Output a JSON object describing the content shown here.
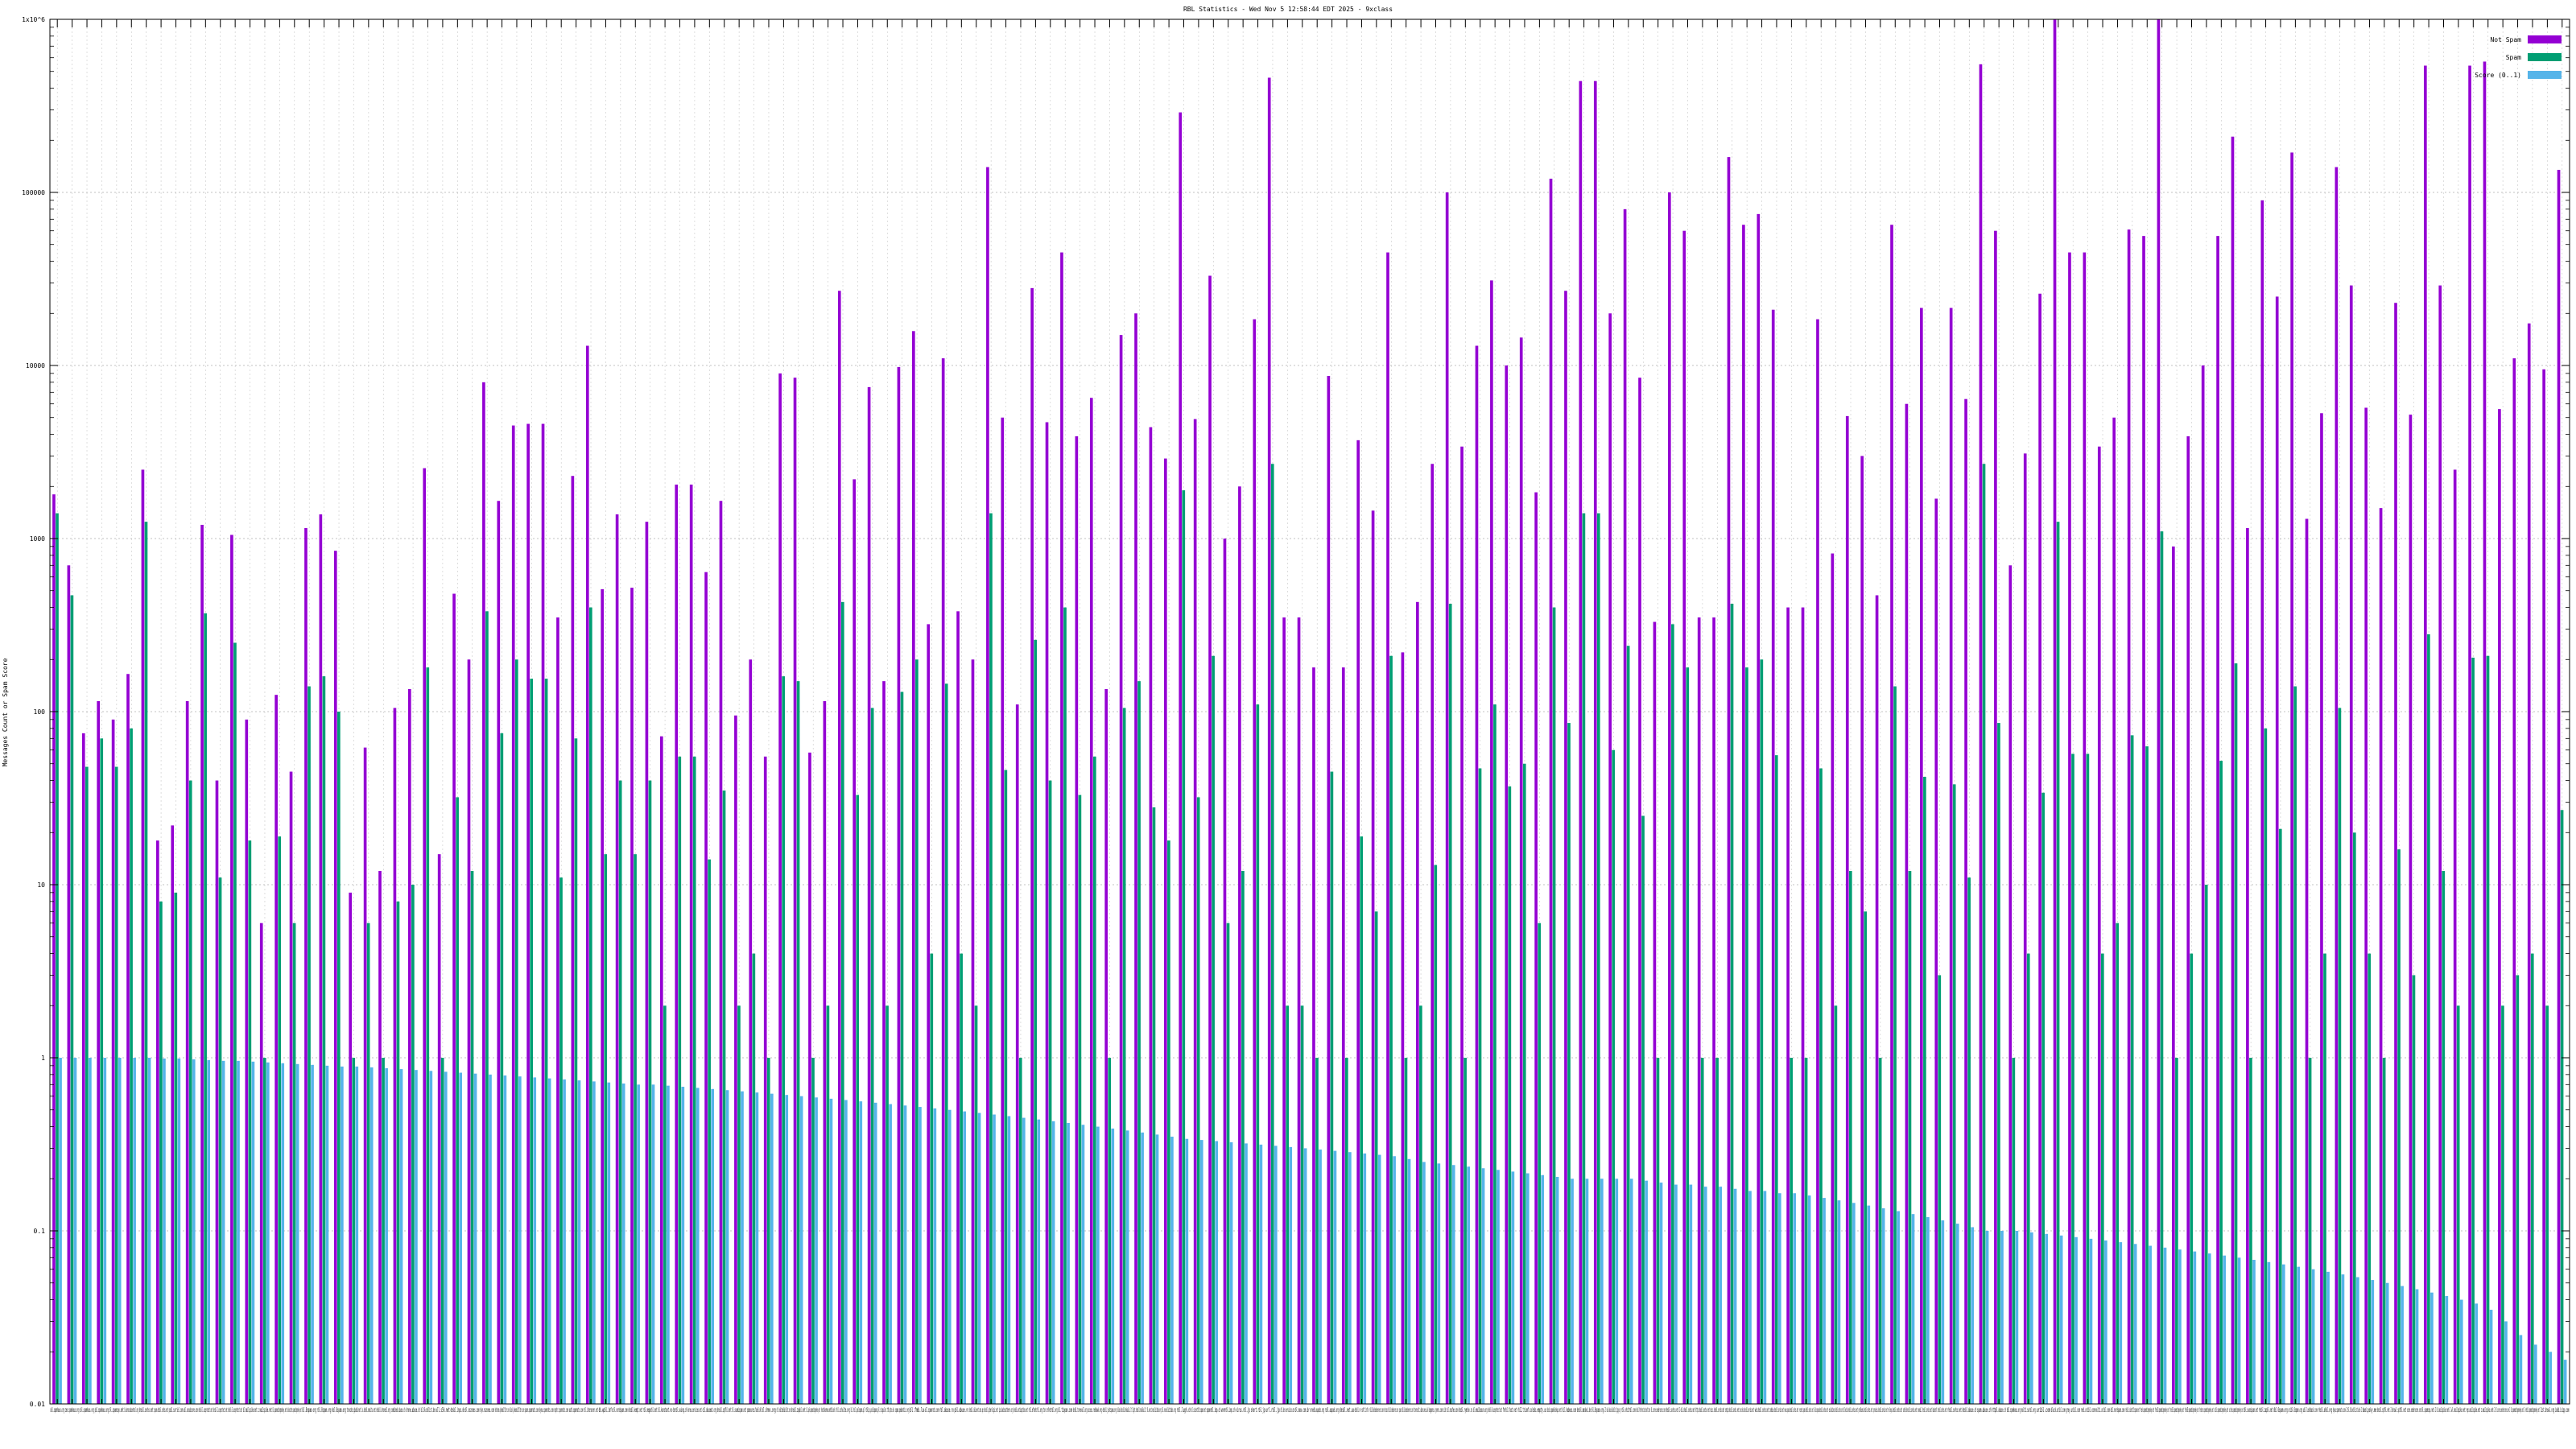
{
  "chart_data": {
    "type": "bar",
    "title": "RBL Statistics - Wed Nov 5 12:58:44 EDT 2025 - 9xclass",
    "xlabel": "",
    "ylabel": "Messages Count or Spam Score",
    "y_scale": "log",
    "ylim": [
      0.01,
      1000000.0
    ],
    "grid": true,
    "legend_position": "top-right",
    "y_tick_labels": [
      {
        "value": 0.01,
        "label": "0.01"
      },
      {
        "value": 0.1,
        "label": "0.1"
      },
      {
        "value": 1,
        "label": "1"
      },
      {
        "value": 10,
        "label": "10"
      },
      {
        "value": 100,
        "label": "100"
      },
      {
        "value": 1000,
        "label": "1000"
      },
      {
        "value": 10000,
        "label": "10000"
      },
      {
        "value": 100000,
        "label": "100000"
      },
      {
        "value": 1000000,
        "label": "1x10^6"
      }
    ],
    "categories": [
      "xbl.spamhaus.org",
      "zen.spamhaus.org",
      "sbl.spamhaus.org",
      "pbl.spamhaus.org",
      "bl.spamcop.net",
      "b.barracudacentral.org",
      "dnsbl.sorbs.net",
      "spam.dnsbl.sorbs.net",
      "psbl.surriel.com",
      "ubl.unsubscore.com",
      "dnsbl-1.uceprotect.net",
      "dnsbl-2.uceprotect.net",
      "dnsbl-3.uceprotect.net",
      "bl.mailspike.net",
      "z.mailspike.net",
      "bl.spameatingmonkey.net",
      "backscatter.spameatingmonkey.net",
      "bl.0spam.org",
      "rbl.0spam.org",
      "nbl.0spam.org",
      "truncate.gbudb.net",
      "ix.dnsbl.manitu.net",
      "dnsbl.dronebl.org",
      "combined.abuse.ch",
      "drone.abuse.ch",
      "bl.blocklist.de",
      "all.s5h.net",
      "dnsbl.inps.de",
      "bl.nszones.com",
      "dyn.nszones.com",
      "hostkarma.junkemailfilter.com",
      "black.junkemailfilter.com",
      "spam.spamrats.com",
      "dyna.spamrats.com",
      "noptr.spamrats.com",
      "auth.spamrats.com",
      "rbl.interserver.net",
      "db.wpbl.info",
      "bl.nordspam.com",
      "dnsbl.kempt.net",
      "rbl.megarbl.net",
      "bl.konstant.no",
      "dnsrbl.swinog.ch",
      "korea.services.net",
      "cbl.abuseat.org",
      "dnsbl.spfbl.net",
      "bl.suomispam.net",
      "spamsources.fabel.dk",
      "bl.drmx.org",
      "rbl.realtimeblacklist.com",
      "dnsbl.zapbl.net",
      "bl.ipv6.spameatingmonkey.net",
      "hostkarma.netblock",
      "rbl.schulte.org",
      "bl.rbl.polspam.pl",
      "rblip.polspam.pl",
      "singular.ttk.pte.hu",
      "spam.pedantic.org",
      "bl.fmb.la",
      "all.spamrats.com",
      "rbl.abuse.ro",
      "pbl.abuse.ro",
      "dnsbl.calivent.com.pe",
      "dnsbl.cyberlogic.net",
      "ips.backscatterer.org",
      "dnsbl.anticaptcha.net",
      "rbl.efnetrbl.org",
      "tor.efnetrbl.org",
      "bl.tiopan.com",
      "dnsbl.tornevall.org",
      "access.redhawk.org",
      "dnsbl.justspam.org",
      "black.dnsbl.brukalai.lt",
      "light.dnsbl.brukalai.lt",
      "bl.worst.nosolicitado.org",
      "bl.nosolicitado.org",
      "rbl.lugh.ch",
      "bl.scientificspam.net",
      "spamrbl.imp.ch",
      "wormrbl.imp.ch",
      "virus.rbl.jp",
      "short.rbl.jp",
      "url.rbl.jp",
      "rbl.dns-servicios.com",
      "bl.mav.com.br",
      "orvedb.aupads.org",
      "rsbl.aupads.org",
      "dnsbl.net.ua",
      "dnsbl.rv-soft.info",
      "rbl.blockedservers.com",
      "netscan.rbl.blockedservers.com",
      "spam.rbl.blockedservers.com",
      "torexit.dan.me.uk",
      "bogons.cymru.com",
      "cidr.bl.mcafee.com",
      "dnsbl.rymsho.ru",
      "bl.emailbasura.org",
      "dnsbl-0.uceprotect.net",
      "fnrbl.fast.net",
      "rbl2.triumf.ca",
      "bsb.empty.us",
      "bsb.spamlookup.net",
      "hil.habeas.com",
      "dnsbl.madavi.de",
      "bl.0spam.org-2",
      "mail-abuse.blacklist.jippg.org",
      "rbl.orbitrbl.com",
      "dnsbl.forefront.microsoft.com",
      "bl.score.senderscore.com",
      "dnsbl.sorbs.net-2",
      "dul.dnsbl.sorbs.net",
      "http.dnsbl.sorbs.net",
      "misc.dnsbl.sorbs.net",
      "smtp.dnsbl.sorbs.net",
      "socks.dnsbl.sorbs.net",
      "web.dnsbl.sorbs.net",
      "zombie.dnsbl.sorbs.net",
      "new.spam.dnsbl.sorbs.net",
      "recent.spam.dnsbl.sorbs.net",
      "old.spam.dnsbl.sorbs.net",
      "escalations.dnsbl.sorbs.net",
      "block.dnsbl.sorbs.net",
      "problems.dnsbl.sorbs.net",
      "proxies.dnsbl.sorbs.net",
      "relays.dnsbl.sorbs.net",
      "safe.dnsbl.sorbs.net",
      "nomail.rhsbl.sorbs.net",
      "badconf.rhsbl.sorbs.net",
      "rhsbl.sorbs.net",
      "dnsbl.abuse.ch",
      "spam.abuse.ch",
      "httpbl.abuse.ch",
      "dbl.spamhaus.org",
      "multi.surbl.org",
      "uribl.com",
      "black.uribl.com",
      "grey.uribl.com",
      "red.uribl.com",
      "multi.uribl.com",
      "dbl.nordspam.com",
      "rhsbl.scientificspam.net",
      "fresh.spameatingmonkey.net",
      "fresh10.spameatingmonkey.net",
      "fresh15.spameatingmonkey.net",
      "fresh30.spameatingmonkey.net",
      "freshzero.spameatingmonkey.net",
      "uribl.spameatingmonkey.net",
      "urired.spameatingmonkey.net",
      "dbl.suomispam.net",
      "rhsbl.zapbl.net",
      "dbl.0spam.org",
      "uribl.0spam.org",
      "ubl.lashback.com",
      "rhsbl.ahbl.org",
      "dyna.spamrats.com-2",
      "bl.blocklist.de-2",
      "bad.psky.me",
      "dnsbl.spfbl.net-2",
      "dnswl.spfbl.net",
      "score.senderscore.com",
      "bl.spamcop.net-2",
      "bl.mailspike.net-2",
      "wl.mailspike.net",
      "rep.mailspike.net",
      "z.mailspike.net-2",
      "bl.score.senderscore.com-2",
      "bl.spameatingmonkey.net-2",
      "netbl.spameatingmonkey.net",
      "list.dnswl.org",
      "iadb.isipp.com"
    ],
    "legend": [
      "Not Spam",
      "Spam",
      "Score (0..1)"
    ],
    "colors": {
      "not_spam": "#9400d3",
      "spam": "#009e73",
      "score": "#56b4e9"
    },
    "series": [
      {
        "name": "Not Spam",
        "color": "#9400d3",
        "values": [
          1800,
          700,
          75,
          115,
          90,
          165,
          2500,
          18,
          22,
          115,
          1200,
          40,
          1050,
          90,
          6,
          125,
          45,
          1150,
          1380,
          850,
          9,
          62,
          12,
          105,
          135,
          2550,
          15,
          480,
          200,
          8000,
          1650,
          4500,
          4600,
          4600,
          350,
          2300,
          13000,
          510,
          1380,
          520,
          1250,
          72,
          2050,
          2050,
          640,
          1650,
          95,
          200,
          55,
          9000,
          8500,
          58,
          115,
          27000,
          2200,
          7500,
          150,
          9800,
          15800,
          320,
          11000,
          380,
          200,
          140000,
          5000,
          110,
          28000,
          4700,
          45000,
          3900,
          6500,
          135,
          15000,
          20000,
          4400,
          2900,
          290000,
          4900,
          33000,
          1000,
          2000,
          18500,
          460000,
          350,
          350,
          180,
          8700,
          180,
          3700,
          1450,
          45000,
          220,
          430,
          2700,
          100000,
          3400,
          13000,
          31000,
          10000,
          14500,
          1850,
          120000,
          27000,
          440000,
          440000,
          20000,
          80000,
          8500,
          330,
          100000,
          60000,
          350,
          350,
          160000,
          65000,
          75000,
          21000,
          400,
          400,
          18500,
          820,
          5100,
          3000,
          470,
          65000,
          6000,
          21500,
          1700,
          21500,
          6400,
          550000,
          60000,
          700,
          3100,
          26000,
          1000000,
          45000,
          45000,
          3400,
          5000,
          61000,
          56000,
          1000000,
          900,
          3900,
          10000,
          56000,
          210000,
          1150,
          90000,
          25000,
          170000,
          1300,
          5300,
          140000,
          29000,
          5700,
          1500,
          23000,
          5200,
          540000,
          29000,
          2500,
          540000,
          570000,
          5600,
          11000,
          17500,
          9500,
          135000
        ]
      },
      {
        "name": "Spam",
        "color": "#009e73",
        "values": [
          1400,
          470,
          48,
          70,
          48,
          80,
          1250,
          8,
          9,
          40,
          370,
          11,
          250,
          18,
          1,
          19,
          6,
          140,
          160,
          100,
          1,
          6,
          1,
          8,
          10,
          180,
          1,
          32,
          12,
          380,
          75,
          200,
          155,
          155,
          11,
          70,
          400,
          15,
          40,
          15,
          40,
          2,
          55,
          55,
          14,
          35,
          2,
          4,
          1,
          160,
          150,
          1,
          2,
          430,
          33,
          105,
          2,
          130,
          200,
          4,
          145,
          4,
          2,
          1400,
          46,
          1,
          260,
          40,
          400,
          33,
          55,
          1,
          105,
          150,
          28,
          18,
          1900,
          32,
          210,
          6,
          12,
          110,
          2700,
          2,
          2,
          1,
          45,
          1,
          19,
          7,
          210,
          1,
          2,
          13,
          420,
          1,
          47,
          110,
          37,
          50,
          6,
          400,
          86,
          1400,
          1400,
          60,
          240,
          25,
          1,
          320,
          180,
          1,
          1,
          420,
          180,
          200,
          56,
          1,
          1,
          47,
          2,
          12,
          7,
          1,
          140,
          12,
          42,
          3,
          38,
          11,
          2700,
          86,
          1,
          4,
          34,
          1250,
          57,
          57,
          4,
          6,
          73,
          63,
          1100,
          1,
          4,
          10,
          52,
          190,
          1,
          80,
          21,
          140,
          1,
          4,
          105,
          20,
          4,
          1,
          16,
          3,
          280,
          12,
          2,
          205,
          210,
          2,
          3,
          4,
          2,
          27
        ]
      },
      {
        "name": "Score (0..1)",
        "color": "#56b4e9",
        "values": [
          1.0,
          1.0,
          1.0,
          1.0,
          1.0,
          1.0,
          1.0,
          0.99,
          0.99,
          0.98,
          0.97,
          0.96,
          0.96,
          0.95,
          0.94,
          0.93,
          0.92,
          0.91,
          0.9,
          0.89,
          0.89,
          0.88,
          0.87,
          0.86,
          0.85,
          0.84,
          0.83,
          0.82,
          0.81,
          0.8,
          0.79,
          0.78,
          0.77,
          0.76,
          0.75,
          0.74,
          0.73,
          0.72,
          0.71,
          0.7,
          0.7,
          0.69,
          0.68,
          0.67,
          0.66,
          0.65,
          0.64,
          0.63,
          0.62,
          0.61,
          0.6,
          0.59,
          0.58,
          0.57,
          0.56,
          0.55,
          0.54,
          0.53,
          0.52,
          0.51,
          0.5,
          0.49,
          0.48,
          0.47,
          0.46,
          0.45,
          0.44,
          0.43,
          0.42,
          0.41,
          0.4,
          0.39,
          0.38,
          0.37,
          0.36,
          0.35,
          0.34,
          0.335,
          0.33,
          0.325,
          0.32,
          0.315,
          0.31,
          0.305,
          0.3,
          0.295,
          0.29,
          0.285,
          0.28,
          0.275,
          0.27,
          0.26,
          0.25,
          0.245,
          0.24,
          0.235,
          0.23,
          0.225,
          0.22,
          0.215,
          0.21,
          0.205,
          0.2,
          0.2,
          0.2,
          0.2,
          0.2,
          0.195,
          0.19,
          0.185,
          0.185,
          0.18,
          0.18,
          0.175,
          0.17,
          0.17,
          0.165,
          0.165,
          0.16,
          0.155,
          0.15,
          0.145,
          0.14,
          0.135,
          0.13,
          0.125,
          0.12,
          0.115,
          0.11,
          0.105,
          0.1,
          0.1,
          0.1,
          0.098,
          0.096,
          0.094,
          0.092,
          0.09,
          0.088,
          0.086,
          0.084,
          0.082,
          0.08,
          0.078,
          0.076,
          0.074,
          0.072,
          0.07,
          0.068,
          0.066,
          0.064,
          0.062,
          0.06,
          0.058,
          0.056,
          0.054,
          0.052,
          0.05,
          0.048,
          0.046,
          0.044,
          0.042,
          0.04,
          0.038,
          0.035,
          0.03,
          0.025,
          0.022,
          0.02,
          0.018
        ]
      }
    ]
  }
}
